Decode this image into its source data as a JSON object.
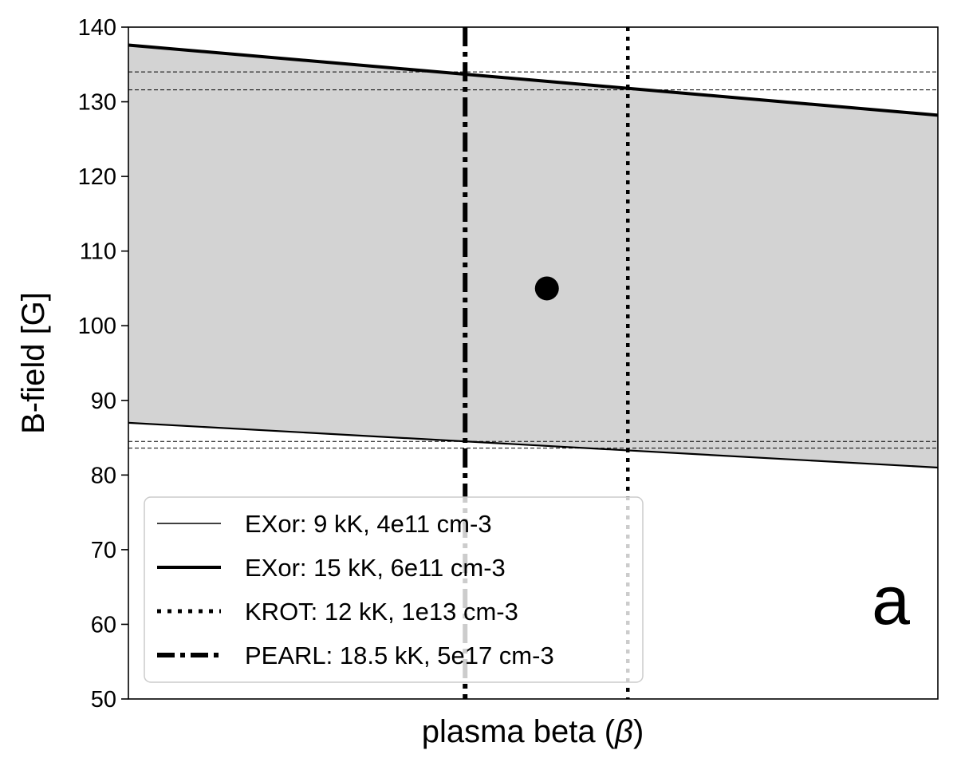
{
  "chart_data": {
    "type": "line",
    "xlabel": "plasma beta (β)",
    "xlabel_parts": {
      "prefix": "plasma beta (",
      "symbol": "β",
      "suffix": ")"
    },
    "ylabel": "B-field [G]",
    "ylim": [
      50,
      140
    ],
    "yticks": [
      50,
      60,
      70,
      80,
      90,
      100,
      110,
      120,
      130,
      140
    ],
    "xlim": [
      0,
      1
    ],
    "xticks_shown": false,
    "grid": false,
    "legend_position": "lower-left",
    "panel_label": "a",
    "series": [
      {
        "name": "EXor: 9 kK, 4e11 cm-3",
        "style": "solid-thin",
        "x": [
          0,
          1
        ],
        "y": [
          87.0,
          81.0
        ]
      },
      {
        "name": "EXor: 15 kK, 6e11 cm-3",
        "style": "solid-thick",
        "x": [
          0,
          1
        ],
        "y": [
          137.6,
          128.2
        ]
      },
      {
        "name": "KROT: 12 kK, 1e13 cm-3",
        "style": "dotted-vertical",
        "x_value": 0.617
      },
      {
        "name": "PEARL: 18.5 kK, 5e17 cm-3",
        "style": "dashdot-vertical",
        "x_value": 0.416
      }
    ],
    "shaded_band": {
      "between": [
        "EXor: 9 kK, 4e11 cm-3",
        "EXor: 15 kK, 6e11 cm-3"
      ],
      "color": "#d3d3d3"
    },
    "reference_hlines": [
      134.0,
      131.6,
      84.5,
      83.6
    ],
    "point": {
      "x": 0.517,
      "y": 105.0
    },
    "colors": {
      "line": "#000000",
      "band": "#d3d3d3",
      "background": "#ffffff"
    }
  }
}
